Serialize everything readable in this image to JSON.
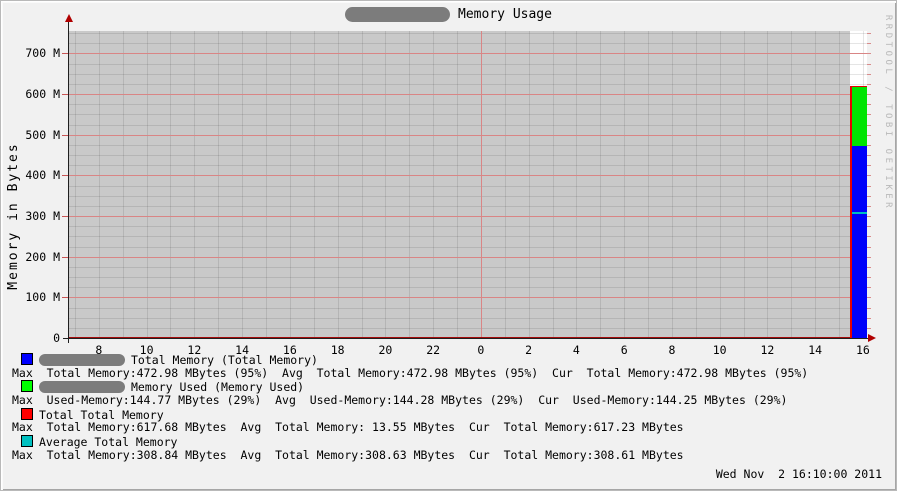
{
  "title": {
    "text": "Memory Usage",
    "host_redacted": true
  },
  "watermark": "RRDTOOL / TOBI OETIKER",
  "footer": {
    "timestamp": "Wed Nov  2 16:10:00 2011"
  },
  "chart_data": {
    "type": "area",
    "title": "Memory Usage",
    "ylabel": "Memory in Bytes",
    "ylim_mbytes": [
      0,
      755
    ],
    "y_major_step_mbytes": 100,
    "y_minor_step_mbytes": 25,
    "y_ticks": [
      {
        "mbytes": 0,
        "label": "0"
      },
      {
        "mbytes": 100,
        "label": "100 M"
      },
      {
        "mbytes": 200,
        "label": "200 M"
      },
      {
        "mbytes": 300,
        "label": "300 M"
      },
      {
        "mbytes": 400,
        "label": "400 M"
      },
      {
        "mbytes": 500,
        "label": "500 M"
      },
      {
        "mbytes": 600,
        "label": "600 M"
      },
      {
        "mbytes": 700,
        "label": "700 M"
      }
    ],
    "x_axis_hours": [
      6.75,
      40.17
    ],
    "x_minor_step_hours": 1,
    "x_major_red_hour": 24,
    "x_ticks": [
      {
        "hour": 8,
        "label": "8"
      },
      {
        "hour": 10,
        "label": "10"
      },
      {
        "hour": 12,
        "label": "12"
      },
      {
        "hour": 14,
        "label": "14"
      },
      {
        "hour": 16,
        "label": "16"
      },
      {
        "hour": 18,
        "label": "18"
      },
      {
        "hour": 20,
        "label": "20"
      },
      {
        "hour": 22,
        "label": "22"
      },
      {
        "hour": 24,
        "label": "0"
      },
      {
        "hour": 26,
        "label": "2"
      },
      {
        "hour": 28,
        "label": "4"
      },
      {
        "hour": 30,
        "label": "6"
      },
      {
        "hour": 32,
        "label": "8"
      },
      {
        "hour": 34,
        "label": "10"
      },
      {
        "hour": 36,
        "label": "12"
      },
      {
        "hour": 38,
        "label": "14"
      },
      {
        "hour": 40,
        "label": "16"
      }
    ],
    "grid": true,
    "legend_position": "bottom",
    "colors": {
      "plot_bg": "#c9c9c9",
      "future_bg": "#ffffff",
      "grid_minor": "rgba(30,30,30,0.115)",
      "grid_major": "#d98585",
      "axis": "#1f1f1f",
      "arrow": "#b00000",
      "baseline_red": "#a50b0b"
    },
    "series": [
      {
        "name": "Total Memory (Total Memory)",
        "draw": "AREA",
        "color": "#0000fa",
        "cur_mbytes": 472.98
      },
      {
        "name": "Memory Used (Memory Used)",
        "draw": "STACK",
        "color": "#00e400",
        "cur_mbytes": 144.25,
        "stack_top_mbytes": 617.23
      },
      {
        "name": "Total Total Memory",
        "draw": "LINE",
        "color": "#e60000",
        "cur_mbytes": 617.23,
        "baseline_mbytes": 0
      },
      {
        "name": "Average Total Memory",
        "draw": "LINE",
        "color": "#00bfbf",
        "cur_mbytes": 308.61
      }
    ],
    "bar": {
      "from_hour": 39.54,
      "to_hour": 40.17,
      "blank_from_hour": 39.45
    }
  },
  "legend": {
    "entries": [
      {
        "color": "#0000ff",
        "redacted_prefix": true,
        "label": "Total Memory (Total Memory)",
        "stats": "Max  Total Memory:472.98 MBytes (95%)  Avg  Total Memory:472.98 MBytes (95%)  Cur  Total Memory:472.98 MBytes (95%)"
      },
      {
        "color": "#00ff00",
        "redacted_prefix": true,
        "label": "Memory Used (Memory Used)",
        "stats": "Max  Used-Memory:144.77 MBytes (29%)  Avg  Used-Memory:144.28 MBytes (29%)  Cur  Used-Memory:144.25 MBytes (29%)"
      },
      {
        "color": "#ff0000",
        "redacted_prefix": false,
        "label": "Total Total Memory",
        "stats": "Max  Total Memory:617.68 MBytes  Avg  Total Memory: 13.55 MBytes  Cur  Total Memory:617.23 MBytes"
      },
      {
        "color": "#00c0c0",
        "redacted_prefix": false,
        "label": "Average Total Memory",
        "stats": "Max  Total Memory:308.84 MBytes  Avg  Total Memory:308.63 MBytes  Cur  Total Memory:308.61 MBytes"
      }
    ]
  }
}
